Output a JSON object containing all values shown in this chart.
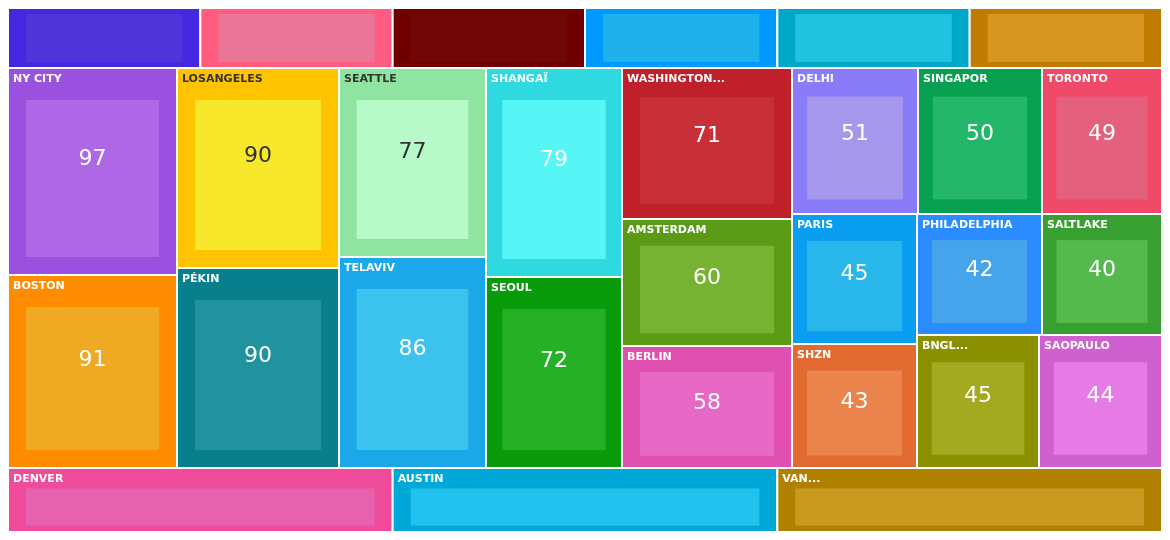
{
  "chart_data": {
    "type": "other",
    "data_labels": true,
    "categories": [
      null,
      null,
      null,
      null,
      null,
      null,
      "NY CITY",
      "BOSTON",
      "LOSANGELES",
      "PÉKIN",
      "SEATTLE",
      "TELAVIV",
      "SHANGAÏ",
      "SEOUL",
      "WASHINGTON...",
      "AMSTERDAM",
      "BERLIN",
      "DELHI",
      "SINGAPOR",
      "TORONTO",
      "PARIS",
      "SHZN",
      "PHILADELPHIA",
      "SALTLAKE",
      "BNGL...",
      "SAOPAULO",
      "DENVER",
      "AUSTIN",
      "VAN..."
    ],
    "values": [
      null,
      null,
      null,
      null,
      null,
      null,
      97,
      91,
      90,
      90,
      77,
      86,
      79,
      72,
      71,
      60,
      58,
      51,
      50,
      49,
      45,
      43,
      42,
      40,
      45,
      44,
      null,
      null,
      null
    ],
    "colors": [
      "#4428e0",
      "#ff5c80",
      "#700000",
      "#0099ff",
      "#00a8c8",
      "#c07c00",
      "#9b51e0",
      "#ff8c00",
      "#ffc300",
      "#087f8c",
      "#8ee4a0",
      "#1aa8e8",
      "#2ed9e0",
      "#0a9b0a",
      "#c0202a",
      "#5a9a14",
      "#e050b0",
      "#8a7cf8",
      "#07a050",
      "#f04a68",
      "#0a9ef0",
      "#e06a30",
      "#2a8cff",
      "#38a030",
      "#8a9000",
      "#d060d0",
      "#f04a9a",
      "#00a8d8",
      "#b08000"
    ]
  }
}
